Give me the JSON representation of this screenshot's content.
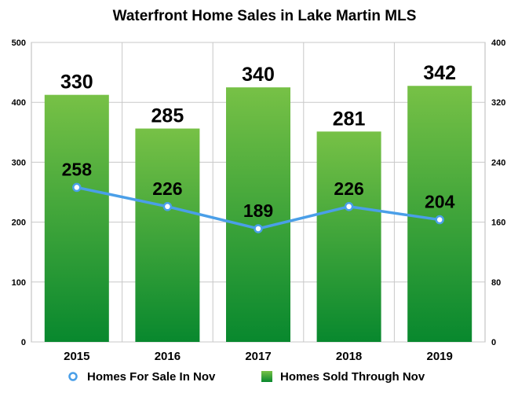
{
  "chart_data": {
    "type": "bar",
    "title": "Waterfront Home Sales in Lake Martin MLS",
    "categories": [
      "2015",
      "2016",
      "2017",
      "2018",
      "2019"
    ],
    "series": [
      {
        "name": "Homes Sold Through Nov",
        "kind": "bar",
        "axis": "right",
        "values": [
          330,
          285,
          340,
          281,
          342
        ],
        "color": "#2ea43a"
      },
      {
        "name": "Homes For Sale In Nov",
        "kind": "line",
        "axis": "left",
        "values": [
          258,
          226,
          189,
          226,
          204
        ],
        "color": "#4a9fe8"
      }
    ],
    "y_left": {
      "min": 0,
      "max": 500,
      "ticks": [
        "0",
        "100",
        "200",
        "300",
        "400",
        "500"
      ]
    },
    "y_right": {
      "min": 0,
      "max": 400,
      "ticks": [
        "0",
        "80",
        "160",
        "240",
        "320",
        "400"
      ]
    },
    "grid": true,
    "legend_position": "bottom"
  }
}
